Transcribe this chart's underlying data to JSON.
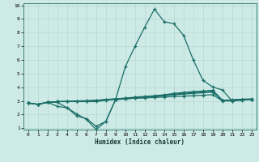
{
  "xlabel": "Humidex (Indice chaleur)",
  "bg_color": "#ceeae6",
  "grid_color": "#b8d8d4",
  "line_color": "#1a6e68",
  "xlim": [
    -0.5,
    23.5
  ],
  "ylim": [
    1,
    10
  ],
  "xticks": [
    0,
    1,
    2,
    3,
    4,
    5,
    6,
    7,
    8,
    9,
    10,
    11,
    12,
    13,
    14,
    15,
    16,
    17,
    18,
    19,
    20,
    21,
    22,
    23
  ],
  "yticks": [
    1,
    2,
    3,
    4,
    5,
    6,
    7,
    8,
    9,
    10
  ],
  "lines": [
    [
      2.85,
      2.75,
      2.9,
      2.9,
      2.5,
      1.9,
      1.7,
      1.15,
      1.5,
      3.1,
      3.15,
      3.2,
      3.22,
      3.25,
      3.28,
      3.32,
      3.35,
      3.38,
      3.42,
      3.45,
      3.0,
      3.0,
      3.1,
      3.1
    ],
    [
      2.85,
      2.75,
      2.9,
      2.95,
      2.95,
      2.95,
      2.95,
      2.95,
      3.05,
      3.1,
      3.15,
      3.2,
      3.25,
      3.3,
      3.38,
      3.45,
      3.5,
      3.55,
      3.6,
      3.65,
      3.05,
      3.05,
      3.12,
      3.12
    ],
    [
      2.85,
      2.75,
      2.9,
      2.95,
      2.95,
      2.98,
      3.0,
      3.02,
      3.1,
      3.15,
      3.2,
      3.25,
      3.3,
      3.35,
      3.42,
      3.5,
      3.55,
      3.62,
      3.68,
      3.72,
      3.05,
      3.05,
      3.12,
      3.12
    ],
    [
      2.85,
      2.75,
      2.9,
      2.95,
      2.98,
      3.0,
      3.02,
      3.05,
      3.1,
      3.15,
      3.2,
      3.28,
      3.33,
      3.38,
      3.45,
      3.55,
      3.62,
      3.68,
      3.72,
      3.78,
      3.05,
      3.08,
      3.12,
      3.15
    ],
    [
      2.85,
      2.75,
      2.9,
      2.6,
      2.5,
      2.05,
      1.65,
      0.9,
      1.5,
      3.1,
      5.5,
      7.0,
      8.4,
      9.72,
      8.8,
      8.65,
      7.8,
      6.0,
      4.5,
      4.02,
      3.8,
      3.0,
      3.05,
      3.12
    ]
  ]
}
